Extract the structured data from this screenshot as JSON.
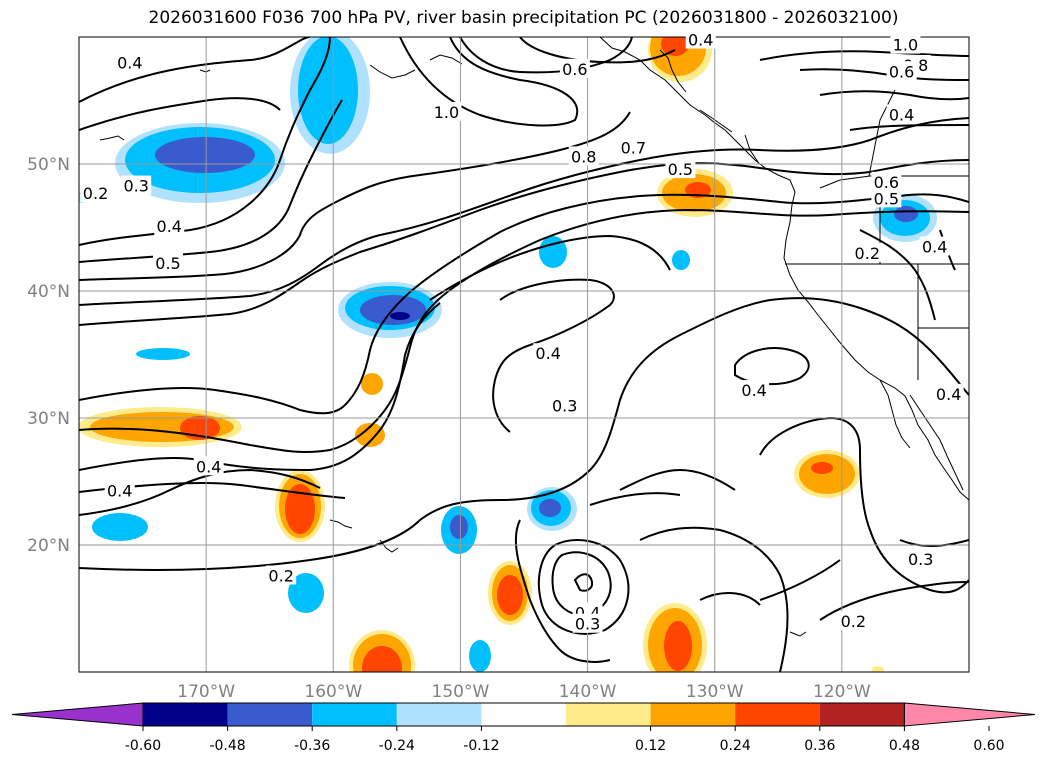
{
  "title": "2026031600 F036 700 hPa PV, river basin precipitation PC (2026031800 - 2026032100)",
  "lat_labels": [
    {
      "lat": 50,
      "label": "50°N"
    },
    {
      "lat": 40,
      "label": "40°N"
    },
    {
      "lat": 30,
      "label": "30°N"
    },
    {
      "lat": 20,
      "label": "20°N"
    }
  ],
  "lon_labels": [
    {
      "lon": -170,
      "label": "170°W"
    },
    {
      "lon": -160,
      "label": "160°W"
    },
    {
      "lon": -150,
      "label": "150°W"
    },
    {
      "lon": -140,
      "label": "140°W"
    },
    {
      "lon": -130,
      "label": "130°W"
    },
    {
      "lon": -120,
      "label": "120°W"
    }
  ],
  "extent": {
    "lon_min": -180,
    "lon_max": -110,
    "lat_min": 10,
    "lat_max": 60
  },
  "colorbar": {
    "colors": [
      "#9932cc",
      "#00008b",
      "#3a5bd0",
      "#00bfff",
      "#b0e2ff",
      "#ffffff",
      "#ffeb8a",
      "#ffa500",
      "#ff4500",
      "#b22222",
      "#ff88aa"
    ],
    "ticks": [
      "-0.60",
      "-0.48",
      "-0.36",
      "-0.24",
      "-0.12",
      "0.12",
      "0.24",
      "0.36",
      "0.48",
      "0.60"
    ]
  },
  "contour_labels": [
    {
      "text": "0.4",
      "lon": -176.0,
      "lat": 58.0
    },
    {
      "text": "1.0",
      "lon": -151.1,
      "lat": 54.1
    },
    {
      "text": "0.6",
      "lon": -141.0,
      "lat": 57.5
    },
    {
      "text": "0.4",
      "lon": -131.1,
      "lat": 59.8
    },
    {
      "text": "0.8",
      "lon": -140.3,
      "lat": 50.6
    },
    {
      "text": "0.7",
      "lon": -136.4,
      "lat": 51.3
    },
    {
      "text": "0.5",
      "lon": -132.7,
      "lat": 49.6
    },
    {
      "text": "1.0",
      "lon": -115.0,
      "lat": 59.4
    },
    {
      "text": "0.8",
      "lon": -114.2,
      "lat": 57.8
    },
    {
      "text": "0.6",
      "lon": -115.3,
      "lat": 57.3
    },
    {
      "text": "0.4",
      "lon": -115.3,
      "lat": 53.9
    },
    {
      "text": "0.6",
      "lon": -116.5,
      "lat": 48.6
    },
    {
      "text": "0.5",
      "lon": -116.5,
      "lat": 47.3
    },
    {
      "text": "0.2",
      "lon": -118.0,
      "lat": 43.0
    },
    {
      "text": "0.4",
      "lon": -112.7,
      "lat": 43.5
    },
    {
      "text": "0.2",
      "lon": -178.7,
      "lat": 47.7
    },
    {
      "text": "0.3",
      "lon": -175.5,
      "lat": 48.3
    },
    {
      "text": "0.4",
      "lon": -172.9,
      "lat": 45.1
    },
    {
      "text": "0.5",
      "lon": -173.0,
      "lat": 42.2
    },
    {
      "text": "0.4",
      "lon": -143.1,
      "lat": 35.1
    },
    {
      "text": "0.3",
      "lon": -141.8,
      "lat": 31.0
    },
    {
      "text": "0.4",
      "lon": -126.9,
      "lat": 32.2
    },
    {
      "text": "0.4",
      "lon": -169.8,
      "lat": 26.2
    },
    {
      "text": "0.4",
      "lon": -176.8,
      "lat": 24.3
    },
    {
      "text": "0.2",
      "lon": -164.1,
      "lat": 17.6
    },
    {
      "text": "0.4",
      "lon": -140.0,
      "lat": 14.7
    },
    {
      "text": "0.3",
      "lon": -140.0,
      "lat": 13.8
    },
    {
      "text": "0.2",
      "lon": -119.1,
      "lat": 14.0
    },
    {
      "text": "0.3",
      "lon": -113.8,
      "lat": 18.9
    },
    {
      "text": "0.4",
      "lon": -111.6,
      "lat": 31.9
    }
  ]
}
